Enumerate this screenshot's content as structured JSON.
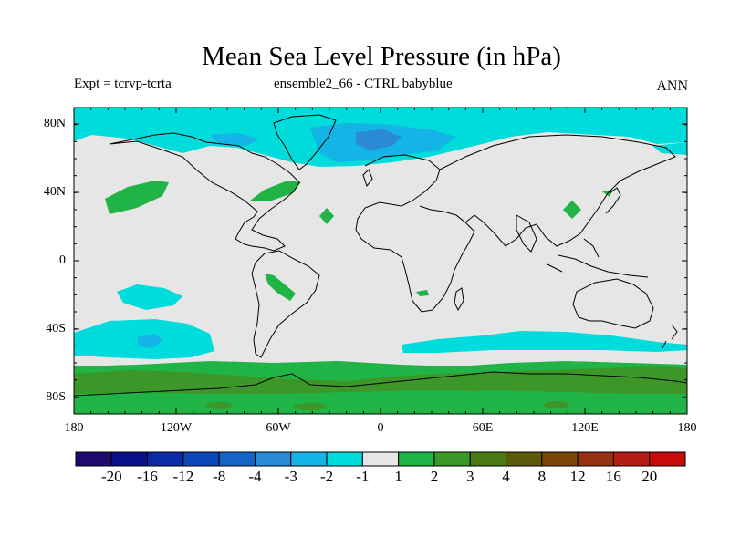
{
  "title": "Mean Sea Level Pressure (in hPa)",
  "subtitle_left": "Expt = tcrvp-tcrta",
  "subtitle_center": "ensemble2_66 - CTRL babyblue",
  "subtitle_right": "ANN",
  "lat_labels": [
    "80N",
    "40N",
    "0",
    "40S",
    "80S"
  ],
  "lon_labels": [
    "180",
    "120W",
    "60W",
    "0",
    "60E",
    "120E",
    "180"
  ],
  "colorbar": {
    "colors": [
      "#1f0a6e",
      "#0b0f8a",
      "#0a2aa6",
      "#0b46b8",
      "#1464c8",
      "#2a8ad6",
      "#14b4e6",
      "#00dcdc",
      "#e6e6e6",
      "#1fb445",
      "#3c9628",
      "#4a7a14",
      "#5c5a0a",
      "#7a460a",
      "#963214",
      "#b41e14",
      "#c80a0a"
    ],
    "labels": [
      "-20",
      "-16",
      "-12",
      "-8",
      "-4",
      "-3",
      "-2",
      "-1",
      "1",
      "2",
      "3",
      "4",
      "8",
      "12",
      "16",
      "20"
    ]
  },
  "colors": {
    "neutral": "#e6e6e6",
    "cyan": "#00dcdc",
    "blue": "#14b4e6",
    "darkblue": "#2a8ad6",
    "green": "#1fb445",
    "darkgreen": "#3c9628"
  }
}
